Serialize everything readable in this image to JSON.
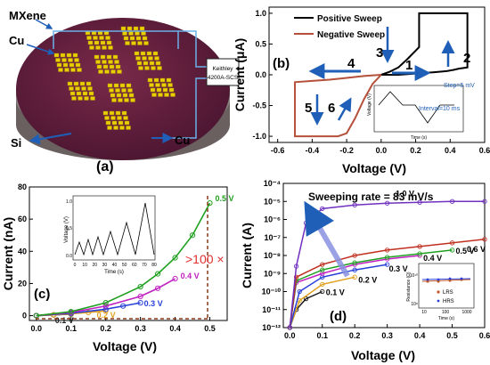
{
  "panel_a": {
    "label": "(a)",
    "mxene": "MXene",
    "cu_top": "Cu",
    "si": "Si",
    "cu_bottom": "Cu",
    "instrument_line1": "Keithley",
    "instrument_line2": "4200A-SCS"
  },
  "panel_b": {
    "label": "(b)",
    "legend_positive": "Positive Sweep",
    "legend_negative": "Negative Sweep",
    "step_label": "Step=5 mV",
    "interval_label": "Interval=10 ms",
    "arrow_numbers": [
      "1",
      "2",
      "3",
      "4",
      "5",
      "6"
    ],
    "inset_ylabel": "Voltage (V)",
    "inset_xlabel": "Time (s)"
  },
  "panel_c": {
    "label": "(c)",
    "ratio_label": ">100 ×",
    "inset_ylabel": "Voltage (V)",
    "inset_xlabel": "Time (s)",
    "inset_yticks": [
      "0.0",
      "0.5",
      "1.0"
    ],
    "inset_xticks": [
      "0",
      "10",
      "20",
      "30",
      "40",
      "50",
      "60",
      "70",
      "80"
    ]
  },
  "panel_d": {
    "label": "(d)",
    "rate_label": "Sweeping rate = 83 mV/s",
    "inset_ylabel": "Resistance (Ω)",
    "inset_xlabel": "Time (s)",
    "inset_yticks": [
      "10⁸",
      "10¹⁰"
    ],
    "inset_xticks": [
      "10",
      "100",
      "1000"
    ],
    "inset_legend_lrs": "LRS",
    "inset_legend_hrs": "HRS"
  },
  "chart_data": [
    {
      "panel": "b",
      "type": "line",
      "xlabel": "Voltage (V)",
      "ylabel": "Current (μA)",
      "xlim": [
        -0.65,
        0.6
      ],
      "ylim": [
        -1.1,
        1.1
      ],
      "xticks": [
        "-0.6",
        "-0.4",
        "-0.2",
        "0.0",
        "0.2",
        "0.4",
        "0.6"
      ],
      "yticks": [
        "-1.0",
        "-0.5",
        "0.0",
        "0.5",
        "1.0"
      ],
      "series": [
        {
          "name": "Positive Sweep",
          "color": "#000000",
          "x": [
            0,
            0.1,
            0.2,
            0.3,
            0.38,
            0.42,
            0.45,
            0.5,
            0.5,
            0.45,
            0.35,
            0.25,
            0.22,
            0.22,
            0.15,
            0.1,
            0.05,
            0
          ],
          "y": [
            0,
            0.0,
            0.02,
            0.04,
            0.06,
            0.08,
            0.1,
            0.12,
            1.0,
            1.0,
            1.0,
            1.0,
            1.0,
            0.45,
            0.25,
            0.12,
            0.05,
            0
          ]
        },
        {
          "name": "Negative Sweep",
          "color": "#b5503a",
          "x": [
            0,
            -0.1,
            -0.2,
            -0.3,
            -0.4,
            -0.5,
            -0.5,
            -0.45,
            -0.35,
            -0.25,
            -0.2,
            -0.15,
            -0.1,
            -0.05,
            0
          ],
          "y": [
            0,
            -0.02,
            -0.05,
            -0.08,
            -0.1,
            -0.12,
            -1.0,
            -1.0,
            -1.0,
            -1.0,
            -0.95,
            -0.7,
            -0.4,
            -0.15,
            0
          ]
        }
      ]
    },
    {
      "panel": "c",
      "type": "line",
      "xlabel": "Voltage (V)",
      "ylabel": "Current (nA)",
      "xlim": [
        -0.02,
        0.55
      ],
      "ylim": [
        -3,
        80
      ],
      "xticks": [
        "0.0",
        "0.1",
        "0.2",
        "0.3",
        "0.4",
        "0.5"
      ],
      "yticks": [
        "0",
        "20",
        "40",
        "60",
        "80"
      ],
      "series": [
        {
          "name": "0.1 V",
          "color": "#1a1a1a",
          "x": [
            0,
            0.05,
            0.1
          ],
          "y": [
            0,
            0.5,
            1
          ]
        },
        {
          "name": "0.2 V",
          "color": "#e0a020",
          "x": [
            0,
            0.05,
            0.1,
            0.15,
            0.2
          ],
          "y": [
            0,
            0.5,
            1.2,
            2,
            3
          ]
        },
        {
          "name": "0.3 V",
          "color": "#2840d8",
          "x": [
            0,
            0.1,
            0.2,
            0.25,
            0.3
          ],
          "y": [
            0,
            1.5,
            4,
            6,
            8
          ]
        },
        {
          "name": "0.4 V",
          "color": "#c020c0",
          "x": [
            0,
            0.1,
            0.2,
            0.3,
            0.35,
            0.4
          ],
          "y": [
            0,
            2,
            6,
            12,
            17,
            23
          ]
        },
        {
          "name": "0.5 V",
          "color": "#20a020",
          "x": [
            0,
            0.1,
            0.2,
            0.3,
            0.35,
            0.4,
            0.45,
            0.5
          ],
          "y": [
            0,
            2.5,
            8,
            18,
            26,
            36,
            50,
            70
          ]
        }
      ]
    },
    {
      "panel": "d",
      "type": "line",
      "xlabel": "Voltage (V)",
      "ylabel": "Current (A)",
      "xlim": [
        -0.02,
        0.6
      ],
      "ylim_log10": [
        -12,
        -4
      ],
      "xticks": [
        "0.0",
        "0.1",
        "0.2",
        "0.3",
        "0.4",
        "0.5",
        "0.6"
      ],
      "yticks": [
        "10⁻¹²",
        "10⁻¹¹",
        "10⁻¹⁰",
        "10⁻⁹",
        "10⁻⁸",
        "10⁻⁷",
        "10⁻⁶",
        "10⁻⁵",
        "10⁻⁴"
      ],
      "series": [
        {
          "name": "0.1 V",
          "color": "#1a1a1a",
          "x": [
            0,
            0.02,
            0.05,
            0.1
          ],
          "log10y": [
            -12,
            -11,
            -10.4,
            -10
          ]
        },
        {
          "name": "0.2 V",
          "color": "#e0a020",
          "x": [
            0,
            0.03,
            0.1,
            0.2
          ],
          "log10y": [
            -12,
            -10.5,
            -9.6,
            -9.2
          ]
        },
        {
          "name": "0.3 V",
          "color": "#2840d8",
          "x": [
            0,
            0.03,
            0.1,
            0.2,
            0.3
          ],
          "log10y": [
            -12,
            -10,
            -9.2,
            -8.8,
            -8.5
          ]
        },
        {
          "name": "0.4 V",
          "color": "#c020c0",
          "x": [
            0,
            0.02,
            0.1,
            0.2,
            0.3,
            0.4
          ],
          "log10y": [
            -12,
            -9.5,
            -9,
            -8.5,
            -8.2,
            -8
          ]
        },
        {
          "name": "0.5 V",
          "color": "#20a020",
          "x": [
            0,
            0.02,
            0.1,
            0.2,
            0.3,
            0.4,
            0.5
          ],
          "log10y": [
            -12,
            -9.4,
            -8.8,
            -8.4,
            -8.1,
            -7.9,
            -7.7
          ]
        },
        {
          "name": "0.6 V",
          "color": "#c03020",
          "x": [
            0,
            0.02,
            0.1,
            0.2,
            0.3,
            0.4,
            0.5,
            0.6
          ],
          "log10y": [
            -12,
            -9.2,
            -8.5,
            -8,
            -7.7,
            -7.5,
            -7.3,
            -7.1
          ]
        },
        {
          "name": "1.0 V",
          "color": "#7030c0",
          "x": [
            0,
            0.02,
            0.05,
            0.1,
            0.2,
            0.3,
            0.4,
            0.5,
            0.6
          ],
          "log10y": [
            -12,
            -8.6,
            -6.2,
            -5.4,
            -5.2,
            -5.1,
            -5.05,
            -5,
            -5
          ]
        }
      ]
    }
  ]
}
